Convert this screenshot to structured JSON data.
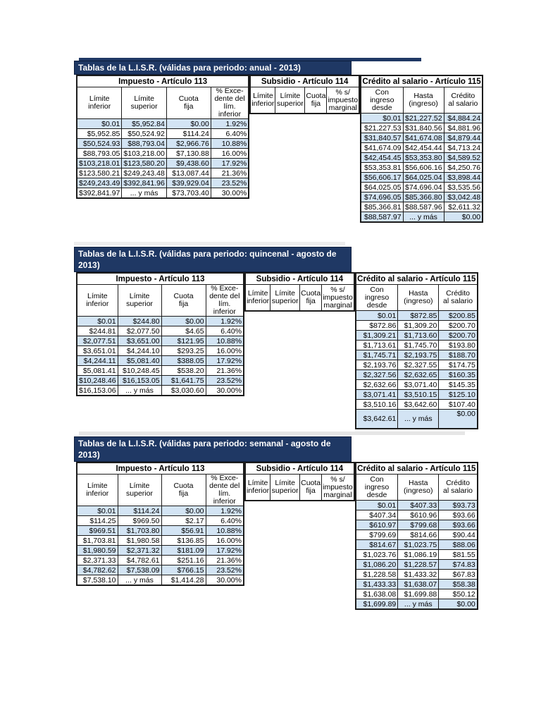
{
  "colors": {
    "title_bar": "#1F3864",
    "title_text": "#FFFFFF",
    "row_highlight": "#D3E4F4",
    "cell_border": "#1C1C1C"
  },
  "tables": [
    {
      "period": "anual",
      "title": "Tablas de la L.I.S.R. (válidas para periodo: anual - 2013)",
      "impuesto": {
        "header": "Impuesto - Artículo 113",
        "columns": [
          "Límite\ninferior",
          "Límite\nsuperior",
          "Cuota\nfija",
          "% Exce-\ndente del\nlím. inferior"
        ],
        "rows": [
          [
            "$0.01",
            "$5,952.84",
            "$0.00",
            "1.92%"
          ],
          [
            "$5,952.85",
            "$50,524.92",
            "$114.24",
            "6.40%"
          ],
          [
            "$50,524.93",
            "$88,793.04",
            "$2,966.76",
            "10.88%"
          ],
          [
            "$88,793.05",
            "$103,218.00",
            "$7,130.88",
            "16.00%"
          ],
          [
            "$103,218.01",
            "$123,580.20",
            "$9,438.60",
            "17.92%"
          ],
          [
            "$123,580.21",
            "$249,243.48",
            "$13,087.44",
            "21.36%"
          ],
          [
            "$249,243.49",
            "$392,841.96",
            "$39,929.04",
            "23.52%"
          ],
          [
            "$392,841.97",
            "... y más",
            "$73,703.40",
            "30.00%"
          ]
        ]
      },
      "subsidio": {
        "header": "Subsidio - Artículo 114",
        "columns": [
          "Límite\ninferior",
          "Límite\nsuperior",
          "Cuota\nfija",
          "% s/\nimpuesto\nmarginal"
        ]
      },
      "credito": {
        "header": "Crédito al salario - Artículo 115",
        "columns": [
          "Con ingreso\ndesde",
          "Hasta\n(ingreso)",
          "Crédito\nal salario"
        ],
        "rows": [
          [
            "$0.01",
            "$21,227.52",
            "$4,884.24"
          ],
          [
            "$21,227.53",
            "$31,840.56",
            "$4,881.96"
          ],
          [
            "$31,840.57",
            "$41,674.08",
            "$4,879.44"
          ],
          [
            "$41,674.09",
            "$42,454.44",
            "$4,713.24"
          ],
          [
            "$42,454.45",
            "$53,353.80",
            "$4,589.52"
          ],
          [
            "$53,353.81",
            "$56,606.16",
            "$4,250.76"
          ],
          [
            "$56,606.17",
            "$64,025.04",
            "$3,898.44"
          ],
          [
            "$64,025.05",
            "$74,696.04",
            "$3,535.56"
          ],
          [
            "$74,696.05",
            "$85,366.80",
            "$3,042.48"
          ],
          [
            "$85,366.81",
            "$88,587.96",
            "$2,611.32"
          ],
          [
            "$88,587.97",
            "... y más",
            "$0.00"
          ]
        ]
      }
    },
    {
      "period": "quincenal",
      "title": "Tablas de la L.I.S.R. (válidas para periodo: quincenal - agosto de 2013)",
      "impuesto": {
        "header": "Impuesto - Artículo 113",
        "columns": [
          "Límite\ninferior",
          "Límite\nsuperior",
          "Cuota\nfija",
          "% Exce-\ndente del\nlím. inferior"
        ],
        "rows": [
          [
            "$0.01",
            "$244.80",
            "$0.00",
            "1.92%"
          ],
          [
            "$244.81",
            "$2,077.50",
            "$4.65",
            "6.40%"
          ],
          [
            "$2,077.51",
            "$3,651.00",
            "$121.95",
            "10.88%"
          ],
          [
            "$3,651.01",
            "$4,244.10",
            "$293.25",
            "16.00%"
          ],
          [
            "$4,244.11",
            "$5,081.40",
            "$388.05",
            "17.92%"
          ],
          [
            "$5,081.41",
            "$10,248.45",
            "$538.20",
            "21.36%"
          ],
          [
            "$10,248.46",
            "$16,153.05",
            "$1,641.75",
            "23.52%"
          ],
          [
            "$16,153.06",
            "... y más",
            "$3,030.60",
            "30.00%"
          ]
        ]
      },
      "subsidio": {
        "header": "Subsidio - Artículo 114",
        "columns": [
          "Límite\ninferior",
          "Límite\nsuperior",
          "Cuota\nfija",
          "% s/\nimpuesto\nmarginal"
        ]
      },
      "credito": {
        "header": "Crédito al salario - Artículo 115",
        "columns": [
          "Con ingreso\ndesde",
          "Hasta\n(ingreso)",
          "Crédito\nal salario"
        ],
        "rows": [
          [
            "$0.01",
            "$872.85",
            "$200.85"
          ],
          [
            "$872.86",
            "$1,309.20",
            "$200.70"
          ],
          [
            "$1,309.21",
            "$1,713.60",
            "$200.70"
          ],
          [
            "$1,713.61",
            "$1,745.70",
            "$193.80"
          ],
          [
            "$1,745.71",
            "$2,193.75",
            "$188.70"
          ],
          [
            "$2,193.76",
            "$2,327.55",
            "$174.75"
          ],
          [
            "$2,327.56",
            "$2,632.65",
            "$160.35"
          ],
          [
            "$2,632.66",
            "$3,071.40",
            "$145.35"
          ],
          [
            "$3,071.41",
            "$3,510.15",
            "$125.10"
          ],
          [
            "$3,510.16",
            "$3,642.60",
            "$107.40"
          ],
          [
            "$3,642.61",
            "... y más",
            "$0.00"
          ]
        ]
      }
    },
    {
      "period": "semanal",
      "title": "Tablas de la L.I.S.R. (válidas para periodo: semanal - agosto de 2013)",
      "impuesto": {
        "header": "Impuesto - Artículo 113",
        "columns": [
          "Límite\ninferior",
          "Límite\nsuperior",
          "Cuota\nfija",
          "% Exce-\ndente del\nlím. inferior"
        ],
        "rows": [
          [
            "$0.01",
            "$114.24",
            "$0.00",
            "1.92%"
          ],
          [
            "$114.25",
            "$969.50",
            "$2.17",
            "6.40%"
          ],
          [
            "$969.51",
            "$1,703.80",
            "$56.91",
            "10.88%"
          ],
          [
            "$1,703.81",
            "$1,980.58",
            "$136.85",
            "16.00%"
          ],
          [
            "$1,980.59",
            "$2,371.32",
            "$181.09",
            "17.92%"
          ],
          [
            "$2,371.33",
            "$4,782.61",
            "$251.16",
            "21.36%"
          ],
          [
            "$4,782.62",
            "$7,538.09",
            "$766.15",
            "23.52%"
          ],
          [
            "$7,538.10",
            "... y más",
            "$1,414.28",
            "30.00%"
          ]
        ]
      },
      "subsidio": {
        "header": "Subsidio - Artículo 114",
        "columns": [
          "Límite\ninferior",
          "Límite\nsuperior",
          "Cuota\nfija",
          "% s/\nimpuesto\nmarginal"
        ]
      },
      "credito": {
        "header": "Crédito al salario - Artículo 115",
        "columns": [
          "Con ingreso\ndesde",
          "Hasta\n(ingreso)",
          "Crédito\nal salario"
        ],
        "rows": [
          [
            "$0.01",
            "$407.33",
            "$93.73"
          ],
          [
            "$407.34",
            "$610.96",
            "$93.66"
          ],
          [
            "$610.97",
            "$799.68",
            "$93.66"
          ],
          [
            "$799.69",
            "$814.66",
            "$90.44"
          ],
          [
            "$814.67",
            "$1,023.75",
            "$88.06"
          ],
          [
            "$1,023.76",
            "$1,086.19",
            "$81.55"
          ],
          [
            "$1,086.20",
            "$1,228.57",
            "$74.83"
          ],
          [
            "$1,228.58",
            "$1,433.32",
            "$67.83"
          ],
          [
            "$1,433.33",
            "$1,638.07",
            "$58.38"
          ],
          [
            "$1,638.08",
            "$1,699.88",
            "$50.12"
          ],
          [
            "$1,699.89",
            "... y más",
            "$0.00"
          ]
        ]
      }
    }
  ]
}
